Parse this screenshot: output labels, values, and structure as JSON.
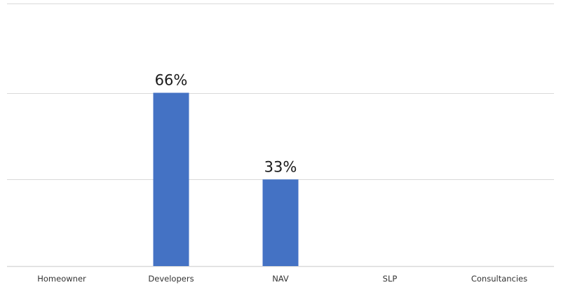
{
  "chart_data": {
    "type": "bar",
    "categories": [
      "Homeowner",
      "Developers",
      "NAV",
      "SLP",
      "Consultancies"
    ],
    "values": [
      0,
      0.66,
      0.33,
      0,
      0
    ],
    "data_labels": [
      "",
      "66%",
      "33%",
      "",
      ""
    ],
    "title": "",
    "xlabel": "",
    "ylabel": "",
    "ylim": [
      0,
      1
    ],
    "gridlines_at": [
      0,
      0.33,
      0.66,
      1
    ],
    "grid": true,
    "y_tick_labels_visible": false,
    "bar_color": "#4472c4",
    "gridline_color": "#d9d9d9"
  }
}
